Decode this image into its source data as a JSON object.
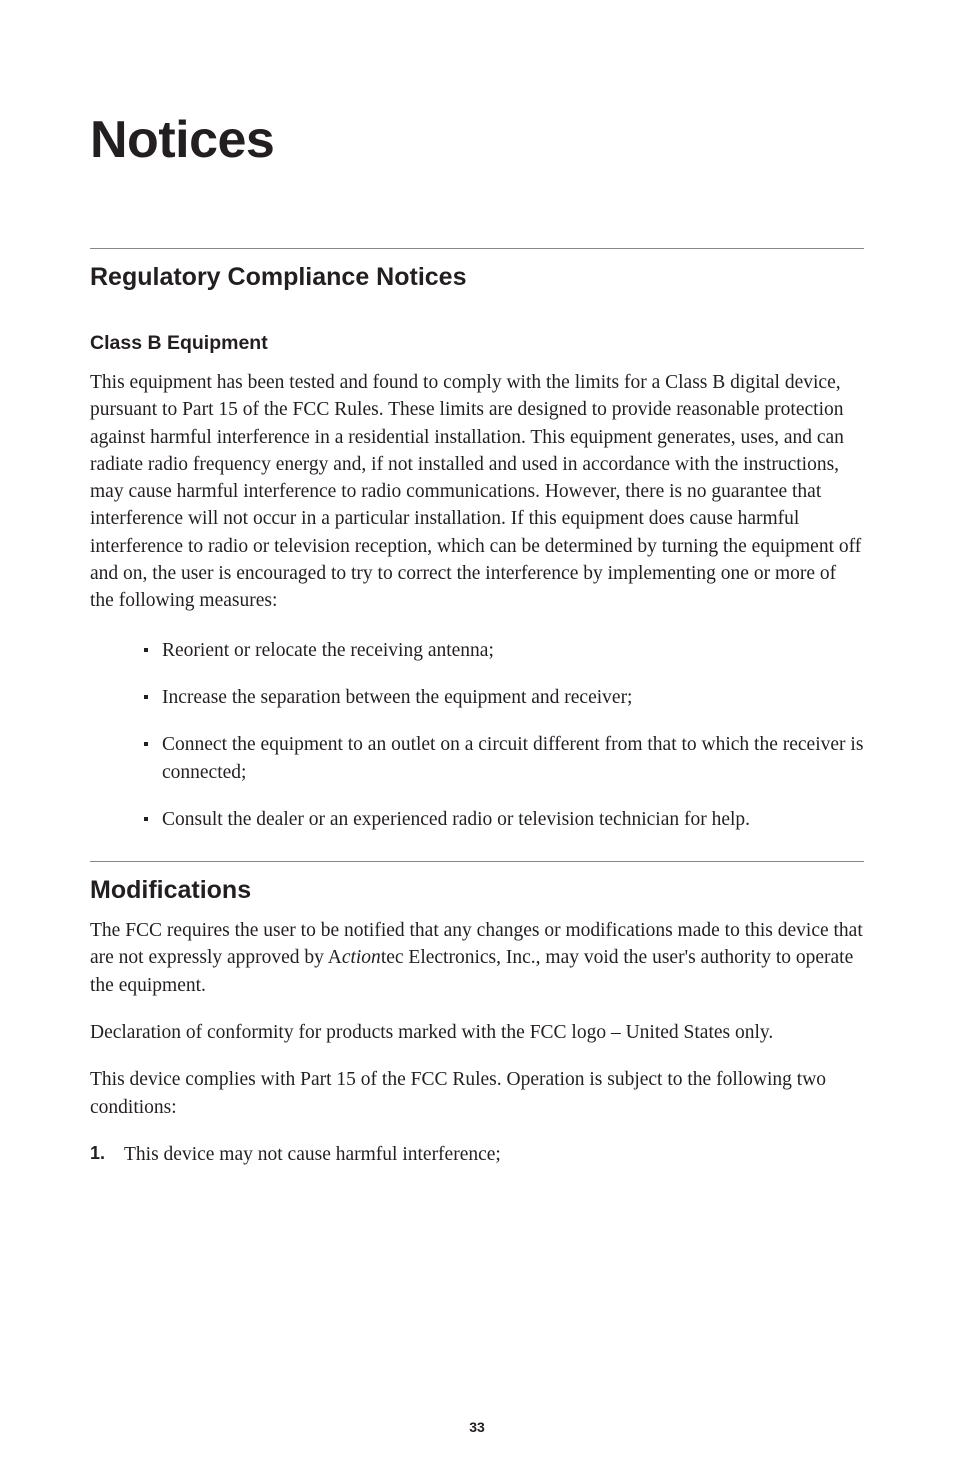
{
  "page": {
    "title": "Notices",
    "page_number": "33"
  },
  "section1": {
    "heading": "Regulatory Compliance Notices",
    "subheading": "Class B Equipment",
    "body": "This equipment has been tested and found to comply with the limits for a Class B digital device, pursuant to Part 15 of the FCC Rules. These limits are designed to provide reasonable protection against harmful interference in a residential installation. This equipment generates, uses, and can radiate radio frequency energy and, if not installed and used in accordance with the instructions, may cause harmful interference to radio communications. However, there is no guarantee that interference will not occur in a particular installation. If this equipment does cause harmful interference to radio or television reception, which can be determined by turning the equipment off and on, the user is encouraged to try to correct the interference by implementing one or more of the following measures:",
    "bullets": [
      "Reorient or relocate the receiving antenna;",
      "Increase the separation between the equipment and receiver;",
      "Connect the equipment to an outlet on a circuit different from that to which the receiver is connected;",
      "Consult the dealer or an experienced radio or television technician for help."
    ]
  },
  "section2": {
    "heading": "Modifications",
    "body1_pre": "The FCC requires the user to be notified that any changes or modifications made to this device that are not expressly approved by A",
    "body1_italic": "ction",
    "body1_post": "tec Electronics, Inc., may void the user's authority to operate the equipment.",
    "body2": "Declaration of conformity for products marked with the FCC logo – United States only.",
    "body3": "This device complies with Part 15 of the FCC Rules. Operation is subject to the following two conditions:",
    "num1_label": "1.",
    "num1_text": "This device may not cause harmful interference;"
  }
}
